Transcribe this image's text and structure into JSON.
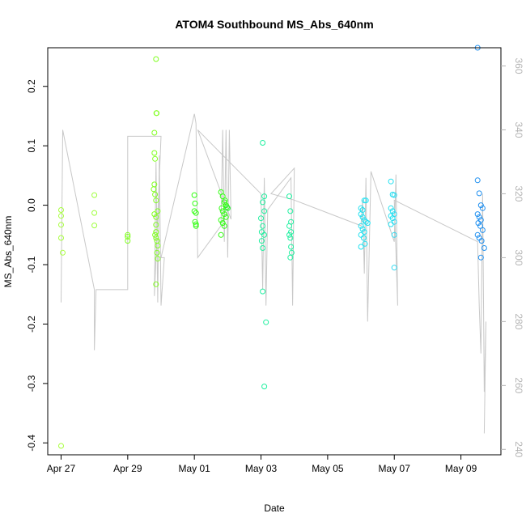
{
  "chart_data": {
    "type": "scatter",
    "title": "ATOM4 Southbound MS_Abs_640nm",
    "xlabel": "Date",
    "ylabel": "MS_Abs_640nm",
    "x_ticks": [
      "Apr 27",
      "Apr 29",
      "May 01",
      "May 03",
      "May 05",
      "May 07",
      "May 09"
    ],
    "y_ticks": [
      "-0.4",
      "-0.3",
      "-0.2",
      "-0.1",
      "0.0",
      "0.1",
      "0.2"
    ],
    "y2_ticks": [
      "240",
      "260",
      "280",
      "300",
      "320",
      "340",
      "360"
    ],
    "xlim": [
      26.6,
      40.2
    ],
    "ylim": [
      -0.42,
      0.265
    ],
    "y2lim": [
      238.3,
      365.7
    ],
    "grid": false,
    "point_color_by_day": {
      "27": "#a8ff3e",
      "28": "#a0ff40",
      "29": "#80ff20",
      "30": "#60ff20",
      "31": "#30ff10",
      "32": "#20f030",
      "33": "#20f0a0",
      "34": "#30f0b0",
      "36": "#20e0f0",
      "37": "#30d8f0",
      "39": "#2090f0"
    },
    "ms_abs_points": [
      {
        "x": 27.0,
        "y": -0.008
      },
      {
        "x": 27.0,
        "y": -0.018
      },
      {
        "x": 27.0,
        "y": -0.033
      },
      {
        "x": 27.0,
        "y": -0.055
      },
      {
        "x": 27.05,
        "y": -0.08
      },
      {
        "x": 27.0,
        "y": -0.405
      },
      {
        "x": 28.0,
        "y": 0.017
      },
      {
        "x": 28.0,
        "y": -0.013
      },
      {
        "x": 28.0,
        "y": -0.034
      },
      {
        "x": 29.0,
        "y": -0.05
      },
      {
        "x": 29.0,
        "y": -0.053
      },
      {
        "x": 29.0,
        "y": -0.06
      },
      {
        "x": 29.85,
        "y": 0.246
      },
      {
        "x": 29.87,
        "y": 0.155
      },
      {
        "x": 29.86,
        "y": 0.155
      },
      {
        "x": 29.8,
        "y": 0.122
      },
      {
        "x": 29.8,
        "y": 0.088
      },
      {
        "x": 29.82,
        "y": 0.078
      },
      {
        "x": 29.8,
        "y": 0.035
      },
      {
        "x": 29.78,
        "y": 0.027
      },
      {
        "x": 29.82,
        "y": 0.018
      },
      {
        "x": 29.85,
        "y": 0.008
      },
      {
        "x": 29.8,
        "y": -0.015
      },
      {
        "x": 29.85,
        "y": -0.02
      },
      {
        "x": 29.9,
        "y": -0.01
      },
      {
        "x": 29.85,
        "y": -0.033
      },
      {
        "x": 29.85,
        "y": -0.045
      },
      {
        "x": 29.82,
        "y": -0.05
      },
      {
        "x": 29.85,
        "y": -0.055
      },
      {
        "x": 29.88,
        "y": -0.06
      },
      {
        "x": 29.9,
        "y": -0.068
      },
      {
        "x": 29.88,
        "y": -0.08
      },
      {
        "x": 29.9,
        "y": -0.09
      },
      {
        "x": 29.85,
        "y": -0.133
      },
      {
        "x": 31.0,
        "y": 0.017
      },
      {
        "x": 31.02,
        "y": 0.003
      },
      {
        "x": 31.0,
        "y": -0.01
      },
      {
        "x": 31.05,
        "y": -0.013
      },
      {
        "x": 31.02,
        "y": -0.028
      },
      {
        "x": 31.05,
        "y": -0.032
      },
      {
        "x": 31.05,
        "y": -0.035
      },
      {
        "x": 31.8,
        "y": 0.022
      },
      {
        "x": 31.85,
        "y": 0.015
      },
      {
        "x": 31.9,
        "y": 0.005
      },
      {
        "x": 31.95,
        "y": 0.0
      },
      {
        "x": 31.98,
        "y": -0.003
      },
      {
        "x": 31.82,
        "y": -0.005
      },
      {
        "x": 31.85,
        "y": -0.01
      },
      {
        "x": 31.9,
        "y": -0.015
      },
      {
        "x": 31.95,
        "y": -0.02
      },
      {
        "x": 31.8,
        "y": -0.025
      },
      {
        "x": 31.85,
        "y": -0.03
      },
      {
        "x": 31.9,
        "y": -0.035
      },
      {
        "x": 31.8,
        "y": -0.05
      },
      {
        "x": 31.92,
        "y": 0.008
      },
      {
        "x": 32.0,
        "y": -0.005
      },
      {
        "x": 33.05,
        "y": 0.105
      },
      {
        "x": 33.1,
        "y": 0.015
      },
      {
        "x": 33.05,
        "y": 0.005
      },
      {
        "x": 33.1,
        "y": -0.01
      },
      {
        "x": 33.0,
        "y": -0.022
      },
      {
        "x": 33.05,
        "y": -0.035
      },
      {
        "x": 33.02,
        "y": -0.045
      },
      {
        "x": 33.1,
        "y": -0.05
      },
      {
        "x": 33.02,
        "y": -0.06
      },
      {
        "x": 33.05,
        "y": -0.072
      },
      {
        "x": 33.05,
        "y": -0.145
      },
      {
        "x": 33.15,
        "y": -0.197
      },
      {
        "x": 33.1,
        "y": -0.305
      },
      {
        "x": 33.85,
        "y": 0.015
      },
      {
        "x": 33.88,
        "y": -0.01
      },
      {
        "x": 33.9,
        "y": -0.028
      },
      {
        "x": 33.85,
        "y": -0.035
      },
      {
        "x": 33.9,
        "y": -0.045
      },
      {
        "x": 33.85,
        "y": -0.05
      },
      {
        "x": 33.88,
        "y": -0.055
      },
      {
        "x": 33.9,
        "y": -0.07
      },
      {
        "x": 33.92,
        "y": -0.08
      },
      {
        "x": 33.88,
        "y": -0.088
      },
      {
        "x": 36.0,
        "y": -0.005
      },
      {
        "x": 36.05,
        "y": -0.008
      },
      {
        "x": 36.1,
        "y": 0.008
      },
      {
        "x": 36.15,
        "y": 0.008
      },
      {
        "x": 36.0,
        "y": -0.015
      },
      {
        "x": 36.05,
        "y": -0.02
      },
      {
        "x": 36.1,
        "y": -0.025
      },
      {
        "x": 36.15,
        "y": -0.028
      },
      {
        "x": 36.2,
        "y": -0.03
      },
      {
        "x": 36.0,
        "y": -0.035
      },
      {
        "x": 36.05,
        "y": -0.04
      },
      {
        "x": 36.1,
        "y": -0.045
      },
      {
        "x": 36.0,
        "y": -0.05
      },
      {
        "x": 36.08,
        "y": -0.055
      },
      {
        "x": 36.12,
        "y": -0.065
      },
      {
        "x": 36.0,
        "y": -0.07
      },
      {
        "x": 36.9,
        "y": 0.04
      },
      {
        "x": 36.95,
        "y": 0.018
      },
      {
        "x": 37.0,
        "y": 0.017
      },
      {
        "x": 36.9,
        "y": -0.005
      },
      {
        "x": 36.95,
        "y": -0.01
      },
      {
        "x": 37.0,
        "y": -0.015
      },
      {
        "x": 36.9,
        "y": -0.018
      },
      {
        "x": 36.95,
        "y": -0.022
      },
      {
        "x": 37.0,
        "y": -0.028
      },
      {
        "x": 36.9,
        "y": -0.032
      },
      {
        "x": 37.0,
        "y": -0.05
      },
      {
        "x": 37.0,
        "y": -0.105
      },
      {
        "x": 39.5,
        "y": 0.265
      },
      {
        "x": 39.5,
        "y": 0.042
      },
      {
        "x": 39.55,
        "y": 0.02
      },
      {
        "x": 39.6,
        "y": 0.0
      },
      {
        "x": 39.65,
        "y": -0.005
      },
      {
        "x": 39.5,
        "y": -0.015
      },
      {
        "x": 39.55,
        "y": -0.02
      },
      {
        "x": 39.6,
        "y": -0.025
      },
      {
        "x": 39.52,
        "y": -0.03
      },
      {
        "x": 39.58,
        "y": -0.035
      },
      {
        "x": 39.65,
        "y": -0.042
      },
      {
        "x": 39.5,
        "y": -0.05
      },
      {
        "x": 39.55,
        "y": -0.055
      },
      {
        "x": 39.62,
        "y": -0.06
      },
      {
        "x": 39.7,
        "y": -0.072
      },
      {
        "x": 39.6,
        "y": -0.088
      }
    ],
    "secondary_line": [
      [
        27.0,
        286
      ],
      [
        27.05,
        340
      ],
      [
        28.0,
        290
      ],
      [
        28.0,
        271
      ],
      [
        28.05,
        290
      ],
      [
        29.0,
        290
      ],
      [
        29.0,
        338
      ],
      [
        30.0,
        338
      ],
      [
        29.8,
        288
      ],
      [
        29.85,
        330
      ],
      [
        29.9,
        286
      ],
      [
        29.95,
        332
      ],
      [
        30.0,
        285
      ],
      [
        30.1,
        300
      ],
      [
        30.0,
        300
      ],
      [
        31.0,
        345
      ],
      [
        31.05,
        342
      ],
      [
        31.1,
        300
      ],
      [
        31.8,
        310
      ],
      [
        31.85,
        340
      ],
      [
        31.9,
        305
      ],
      [
        31.95,
        340
      ],
      [
        32.0,
        300
      ],
      [
        32.05,
        340
      ],
      [
        32.1,
        312
      ],
      [
        31.1,
        340
      ],
      [
        33.0,
        320
      ],
      [
        33.05,
        290
      ],
      [
        33.1,
        325
      ],
      [
        33.15,
        285
      ],
      [
        33.2,
        315
      ],
      [
        33.9,
        325
      ],
      [
        33.95,
        285
      ],
      [
        34.0,
        328
      ],
      [
        33.3,
        320
      ],
      [
        34.0,
        318
      ],
      [
        36.0,
        310
      ],
      [
        36.05,
        318
      ],
      [
        36.1,
        295
      ],
      [
        36.15,
        325
      ],
      [
        36.2,
        280
      ],
      [
        36.3,
        327
      ],
      [
        37.0,
        305
      ],
      [
        37.05,
        326
      ],
      [
        37.1,
        285
      ],
      [
        37.0,
        318
      ],
      [
        39.5,
        305
      ],
      [
        39.55,
        285
      ],
      [
        39.6,
        270
      ],
      [
        39.65,
        320
      ],
      [
        39.7,
        258
      ],
      [
        39.75,
        280
      ],
      [
        39.7,
        245
      ]
    ]
  }
}
